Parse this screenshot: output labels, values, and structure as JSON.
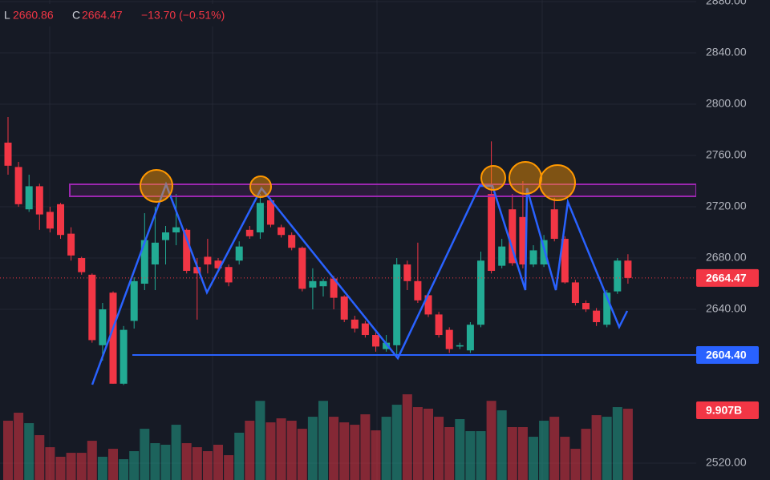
{
  "chart_data": {
    "type": "candlestick",
    "header": {
      "low_prefix": "L",
      "low": 2660.86,
      "close_prefix": "C",
      "close": 2664.47,
      "change": "−13.70 (−0.51%)"
    },
    "up_color": "#22ab94",
    "down_color": "#f23645",
    "open": [
      2770,
      2751,
      2718,
      2736,
      2716,
      2722,
      2699,
      2680,
      2667,
      2612,
      2653,
      2582,
      2631,
      2660,
      2675,
      2694,
      2700,
      2702,
      2673,
      2681,
      2678,
      2673,
      2678,
      2702,
      2700,
      2725,
      2704,
      2698,
      2688,
      2657,
      2658,
      2664,
      2650,
      2632,
      2629,
      2620,
      2609,
      2612,
      2675,
      2662,
      2651,
      2636,
      2624,
      2611,
      2608,
      2628,
      2730,
      2674,
      2718,
      2712,
      2675,
      2675,
      2718,
      2695,
      2661,
      2645,
      2639,
      2628,
      2654,
      2678
    ],
    "high": [
      2790,
      2755,
      2745,
      2738,
      2720,
      2723,
      2704,
      2681,
      2668,
      2645,
      2654,
      2627,
      2665,
      2715,
      2720,
      2705,
      2730,
      2703,
      2680,
      2695,
      2680,
      2675,
      2693,
      2705,
      2730,
      2727,
      2706,
      2700,
      2689,
      2672,
      2664,
      2666,
      2651,
      2635,
      2631,
      2622,
      2620,
      2680,
      2678,
      2692,
      2653,
      2638,
      2626,
      2614,
      2630,
      2685,
      2771,
      2695,
      2730,
      2740,
      2690,
      2698,
      2727,
      2697,
      2663,
      2647,
      2641,
      2655,
      2680,
      2683
    ],
    "low": [
      2745,
      2720,
      2716,
      2702,
      2700,
      2695,
      2678,
      2667,
      2614,
      2600,
      2582,
      2581,
      2625,
      2655,
      2655,
      2675,
      2690,
      2668,
      2632,
      2668,
      2670,
      2658,
      2675,
      2695,
      2695,
      2704,
      2696,
      2686,
      2654,
      2640,
      2650,
      2640,
      2630,
      2622,
      2618,
      2607,
      2607,
      2605,
      2655,
      2645,
      2634,
      2618,
      2606,
      2609,
      2606,
      2626,
      2668,
      2672,
      2674,
      2672,
      2673,
      2673,
      2693,
      2660,
      2643,
      2638,
      2627,
      2626,
      2652,
      2660
    ],
    "close": [
      2752,
      2722,
      2736,
      2714,
      2703,
      2698,
      2682,
      2669,
      2616,
      2640,
      2582,
      2624,
      2662,
      2694,
      2692,
      2700,
      2704,
      2670,
      2668,
      2675,
      2672,
      2661,
      2689,
      2697,
      2723,
      2706,
      2698,
      2688,
      2656,
      2662,
      2662,
      2649,
      2632,
      2625,
      2620,
      2611,
      2614,
      2675,
      2662,
      2647,
      2636,
      2620,
      2609,
      2612,
      2628,
      2678,
      2670,
      2689,
      2676,
      2675,
      2686,
      2694,
      2695,
      2661,
      2645,
      2640,
      2630,
      2653,
      2678,
      2664.47
    ],
    "volume": [
      8.24,
      9.35,
      7.9,
      6.23,
      4.56,
      3.23,
      3.78,
      3.78,
      5.45,
      3.23,
      4.34,
      2.89,
      4.01,
      7.12,
      5.12,
      4.9,
      7.68,
      5.12,
      4.56,
      4.01,
      4.9,
      3.45,
      6.57,
      8.24,
      11.0,
      8.01,
      8.57,
      8.24,
      7.12,
      8.79,
      11.0,
      8.79,
      8.01,
      7.68,
      9.13,
      6.9,
      8.79,
      10.46,
      11.91,
      10.13,
      9.91,
      8.79,
      7.35,
      8.46,
      6.79,
      6.79,
      11.0,
      9.68,
      7.35,
      7.35,
      6.01,
      8.24,
      8.79,
      6.01,
      4.34,
      7.12,
      9.01,
      8.79,
      10.13,
      9.907
    ],
    "last_volume_label": "9.907B",
    "horizontal_line": {
      "value": 2604.4,
      "label": "2604.40"
    },
    "last_price": {
      "value": 2664.47,
      "label": "2664.47"
    },
    "ylim": [
      2506.9,
      2881.25
    ],
    "yticks": [
      {
        "value": 2880,
        "label": "2880.00"
      },
      {
        "value": 2840,
        "label": "2840.00"
      },
      {
        "value": 2800,
        "label": "2800.00"
      },
      {
        "value": 2760,
        "label": "2760.00"
      },
      {
        "value": 2720,
        "label": "2720.00"
      },
      {
        "value": 2680,
        "label": "2680.00"
      },
      {
        "value": 2640,
        "label": "2640.00"
      },
      {
        "value": 2520,
        "label": "2520.00"
      }
    ],
    "grid": true
  }
}
